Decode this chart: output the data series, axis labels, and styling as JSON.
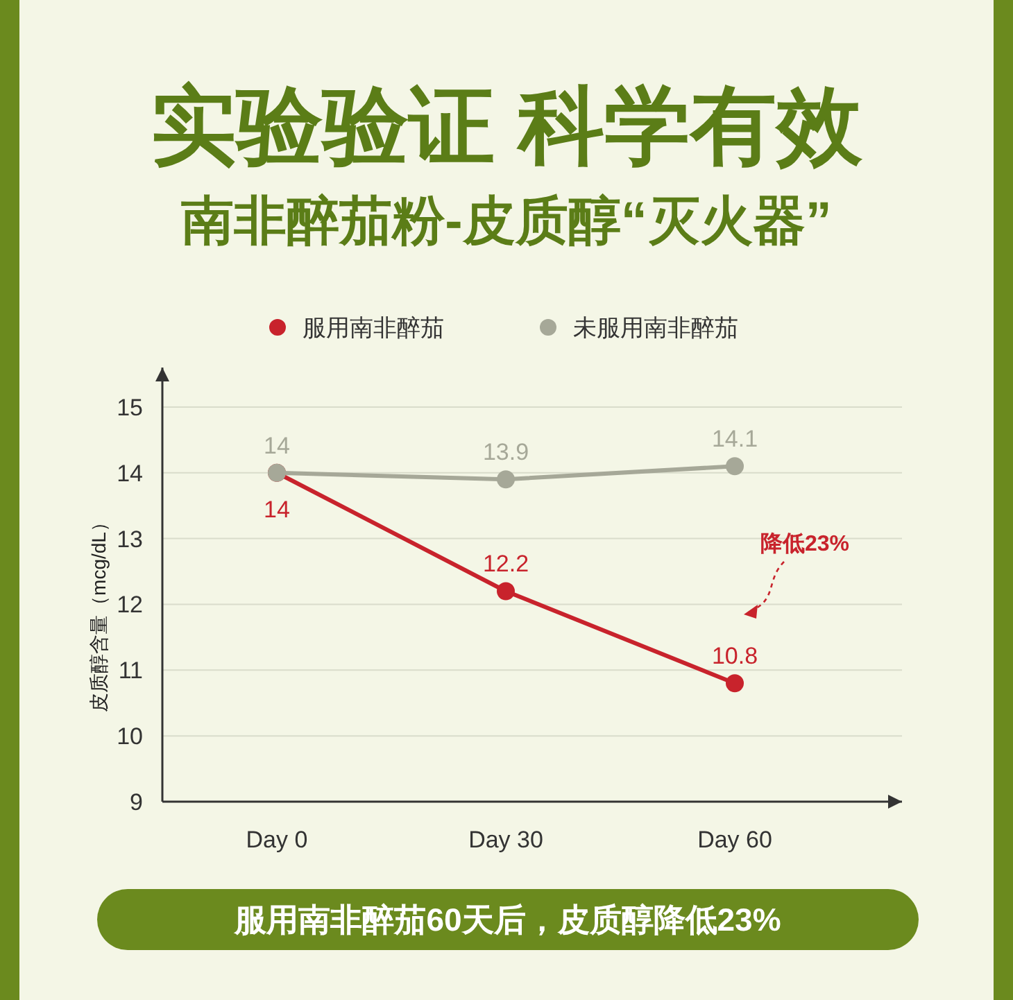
{
  "chart_data": {
    "type": "line",
    "title": "实验验证 科学有效",
    "subtitle": "南非醉茄粉-皮质醇“灭火器”",
    "ylabel": "皮质醇含量（mcg/dL）",
    "categories": [
      "Day 0",
      "Day 30",
      "Day 60"
    ],
    "series": [
      {
        "name": "服用南非醉茄",
        "color": "#c8232c",
        "values": [
          14,
          12.2,
          10.8
        ]
      },
      {
        "name": "未服用南非醉茄",
        "color": "#a6a898",
        "values": [
          14,
          13.9,
          14.1
        ]
      }
    ],
    "ylim": [
      9,
      15.6
    ],
    "yticks": [
      9,
      10,
      11,
      12,
      13,
      14,
      15
    ],
    "grid": "y",
    "legend": "top",
    "marker": "circle",
    "line_style": "solid",
    "data_labels": true,
    "annotations": [
      "降低23%",
      "服用南非醉茄60天后，皮质醇降低23%"
    ]
  }
}
